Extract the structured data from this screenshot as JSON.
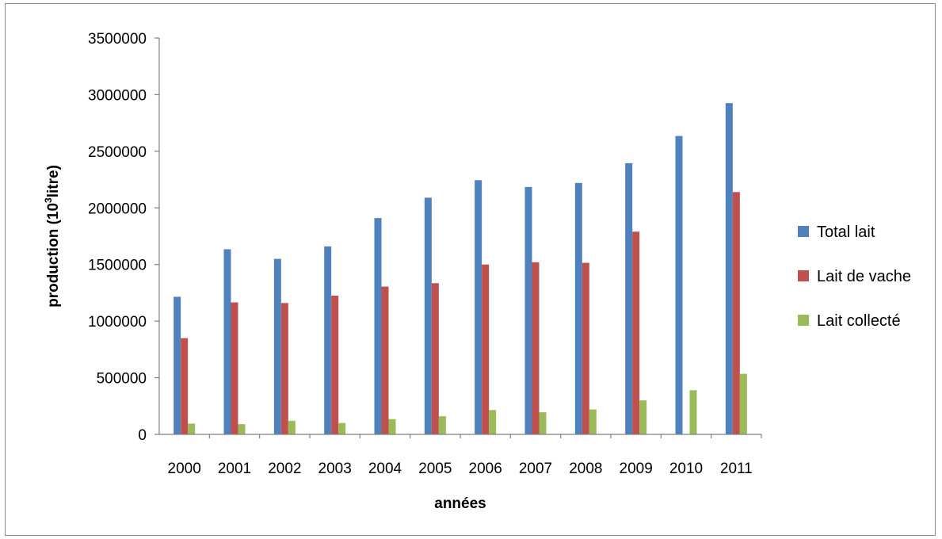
{
  "chart_data": {
    "type": "bar",
    "categories": [
      "2000",
      "2001",
      "2002",
      "2003",
      "2004",
      "2005",
      "2006",
      "2007",
      "2008",
      "2009",
      "2010",
      "2011"
    ],
    "series": [
      {
        "name": "Total lait",
        "color": "#4f81bd",
        "values": [
          1215000,
          1635000,
          1550000,
          1660000,
          1910000,
          2090000,
          2245000,
          2185000,
          2220000,
          2395000,
          2635000,
          2925000
        ]
      },
      {
        "name": "Lait de vache",
        "color": "#c0504d",
        "values": [
          850000,
          1165000,
          1160000,
          1225000,
          1305000,
          1335000,
          1500000,
          1520000,
          1515000,
          1790000,
          null,
          2140000
        ]
      },
      {
        "name": "Lait collecté",
        "color": "#9bbb59",
        "values": [
          95000,
          90000,
          120000,
          100000,
          135000,
          160000,
          215000,
          195000,
          220000,
          300000,
          390000,
          535000
        ]
      }
    ],
    "ylim": [
      0,
      3500000
    ],
    "yticks": [
      "0",
      "500000",
      "1000000",
      "1500000",
      "2000000",
      "2500000",
      "3000000",
      "3500000"
    ],
    "ylabel": {
      "main": "production (10",
      "sup": "3",
      "tail": "litre)"
    },
    "xlabel": "années",
    "grid": false,
    "legend_position": "right"
  }
}
